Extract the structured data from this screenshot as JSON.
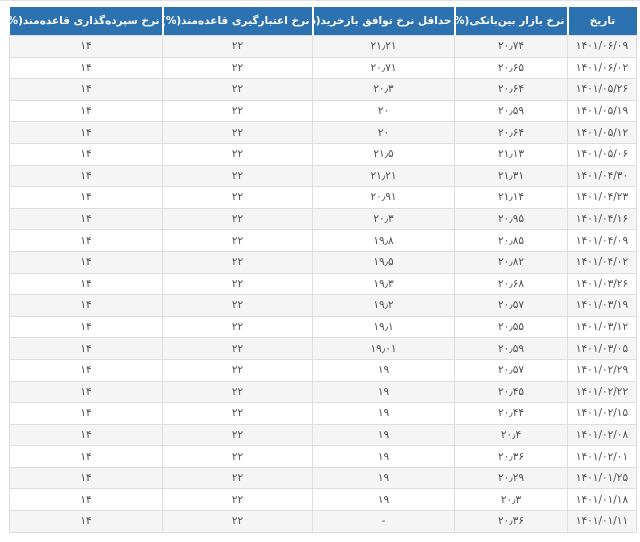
{
  "chart_data": {
    "type": "table",
    "direction": "rtl",
    "title": "",
    "column_keys": [
      "date",
      "interbank_market_rate",
      "min_repo_agreement_rate",
      "regulated_credit_rate",
      "regulated_deposit_rate"
    ],
    "columns": [
      "تاریخ",
      "نرخ بازار بین‌بانکی(%)",
      "حداقل نرخ توافق بازخرید(%)",
      "نرخ اعتبارگیری قاعده‌مند(%)",
      "نرخ سپرده‌گذاری قاعده‌مند(%)"
    ],
    "rows": [
      [
        "۱۴۰۱/۰۶/۰۹",
        "۲۰٫۷۴",
        "۲۱٫۲۱",
        "۲۲",
        "۱۴"
      ],
      [
        "۱۴۰۱/۰۶/۰۲",
        "۲۰٫۶۵",
        "۲۰٫۷۱",
        "۲۲",
        "۱۴"
      ],
      [
        "۱۴۰۱/۰۵/۲۶",
        "۲۰٫۶۴",
        "۲۰٫۳",
        "۲۲",
        "۱۴"
      ],
      [
        "۱۴۰۱/۰۵/۱۹",
        "۲۰٫۵۹",
        "۲۰",
        "۲۲",
        "۱۴"
      ],
      [
        "۱۴۰۱/۰۵/۱۲",
        "۲۰٫۶۴",
        "۲۰",
        "۲۲",
        "۱۴"
      ],
      [
        "۱۴۰۱/۰۵/۰۶",
        "۲۱٫۱۳",
        "۲۱٫۵",
        "۲۲",
        "۱۴"
      ],
      [
        "۱۴۰۱/۰۴/۳۰",
        "۲۱٫۳۱",
        "۲۱٫۲۱",
        "۲۲",
        "۱۴"
      ],
      [
        "۱۴۰۱/۰۴/۲۳",
        "۲۱٫۱۴",
        "۲۰٫۹۱",
        "۲۲",
        "۱۴"
      ],
      [
        "۱۴۰۱/۰۴/۱۶",
        "۲۰٫۹۵",
        "۲۰٫۳",
        "۲۲",
        "۱۴"
      ],
      [
        "۱۴۰۱/۰۴/۰۹",
        "۲۰٫۸۵",
        "۱۹٫۸",
        "۲۲",
        "۱۴"
      ],
      [
        "۱۴۰۱/۰۴/۰۲",
        "۲۰٫۸۲",
        "۱۹٫۵",
        "۲۲",
        "۱۴"
      ],
      [
        "۱۴۰۱/۰۳/۲۶",
        "۲۰٫۶۸",
        "۱۹٫۳",
        "۲۲",
        "۱۴"
      ],
      [
        "۱۴۰۱/۰۳/۱۹",
        "۲۰٫۵۷",
        "۱۹٫۲",
        "۲۲",
        "۱۴"
      ],
      [
        "۱۴۰۱/۰۳/۱۲",
        "۲۰٫۵۵",
        "۱۹٫۱",
        "۲۲",
        "۱۴"
      ],
      [
        "۱۴۰۱/۰۳/۰۵",
        "۲۰٫۵۹",
        "۱۹٫۰۱",
        "۲۲",
        "۱۴"
      ],
      [
        "۱۴۰۱/۰۲/۲۹",
        "۲۰٫۵۷",
        "۱۹",
        "۲۲",
        "۱۴"
      ],
      [
        "۱۴۰۱/۰۲/۲۲",
        "۲۰٫۴۵",
        "۱۹",
        "۲۲",
        "۱۴"
      ],
      [
        "۱۴۰۱/۰۲/۱۵",
        "۲۰٫۴۴",
        "۱۹",
        "۲۲",
        "۱۴"
      ],
      [
        "۱۴۰۱/۰۲/۰۸",
        "۲۰٫۴",
        "۱۹",
        "۲۲",
        "۱۴"
      ],
      [
        "۱۴۰۱/۰۲/۰۱",
        "۲۰٫۳۶",
        "۱۹",
        "۲۲",
        "۱۴"
      ],
      [
        "۱۴۰۱/۰۱/۲۵",
        "۲۰٫۲۹",
        "۱۹",
        "۲۲",
        "۱۴"
      ],
      [
        "۱۴۰۱/۰۱/۱۸",
        "۲۰٫۳",
        "۱۹",
        "۲۲",
        "۱۴"
      ],
      [
        "۱۴۰۱/۰۱/۱۱",
        "۲۰٫۳۶",
        "-",
        "۲۲",
        "۱۴"
      ]
    ],
    "layout_hints": {
      "header_position": "top",
      "first_column_side": "right",
      "grid": true,
      "zebra_striping": true
    }
  },
  "colors": {
    "header_bg": "#2d72b0",
    "header_text": "#ffffff",
    "row_odd_bg": "#f5f5f5",
    "row_even_bg": "#ffffff",
    "cell_border": "#dedede",
    "cell_text": "#4d4d4d"
  }
}
